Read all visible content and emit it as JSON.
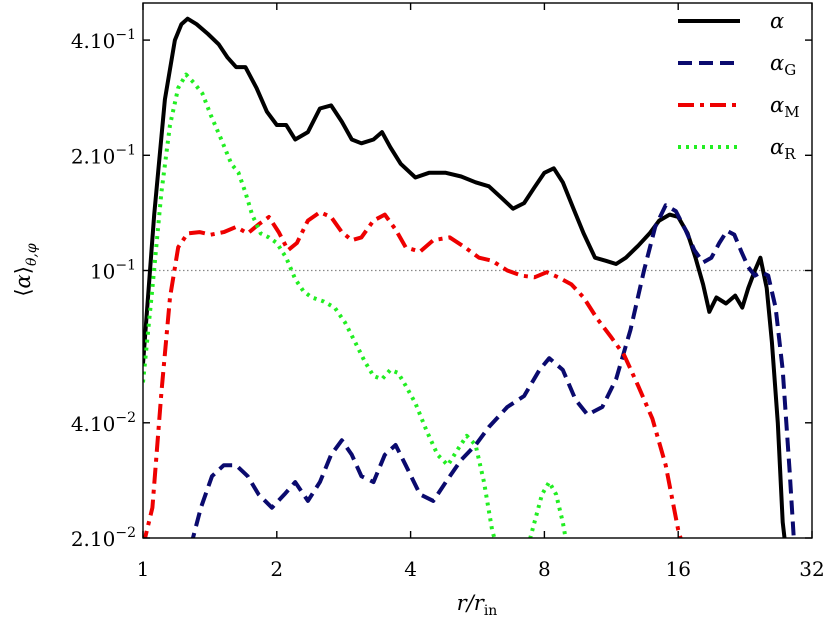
{
  "chart_data": {
    "type": "line",
    "xlabel": "r/r_in",
    "ylabel": "⟨α⟩_θ,φ",
    "xscale": "log2",
    "yscale": "log10",
    "xlim": [
      1,
      32
    ],
    "ylim": [
      0.02,
      0.5
    ],
    "xticks": [
      {
        "value": 1,
        "label": "1"
      },
      {
        "value": 2,
        "label": "2"
      },
      {
        "value": 4,
        "label": "4"
      },
      {
        "value": 8,
        "label": "8"
      },
      {
        "value": 16,
        "label": "16"
      },
      {
        "value": 32,
        "label": "32"
      }
    ],
    "yticks": [
      {
        "value": 0.02,
        "label": "2.10",
        "exp": "−2"
      },
      {
        "value": 0.04,
        "label": "4.10",
        "exp": "−2"
      },
      {
        "value": 0.1,
        "label": "10",
        "exp": "−1"
      },
      {
        "value": 0.2,
        "label": "2.10",
        "exp": "−1"
      },
      {
        "value": 0.4,
        "label": "4.10",
        "exp": "−1"
      }
    ],
    "reference_line": {
      "y": 0.1,
      "style": "dotted",
      "color": "#888888"
    },
    "legend_position": "top-right",
    "series": [
      {
        "name": "α",
        "sub": "",
        "color": "#000000",
        "dash": "",
        "points": [
          [
            1.0,
            0.057
          ],
          [
            1.06,
            0.14
          ],
          [
            1.12,
            0.28
          ],
          [
            1.18,
            0.4
          ],
          [
            1.22,
            0.44
          ],
          [
            1.26,
            0.455
          ],
          [
            1.32,
            0.44
          ],
          [
            1.4,
            0.415
          ],
          [
            1.48,
            0.39
          ],
          [
            1.55,
            0.36
          ],
          [
            1.62,
            0.34
          ],
          [
            1.7,
            0.34
          ],
          [
            1.8,
            0.3
          ],
          [
            1.9,
            0.26
          ],
          [
            2.0,
            0.24
          ],
          [
            2.1,
            0.24
          ],
          [
            2.2,
            0.22
          ],
          [
            2.35,
            0.23
          ],
          [
            2.5,
            0.265
          ],
          [
            2.65,
            0.27
          ],
          [
            2.8,
            0.245
          ],
          [
            2.95,
            0.22
          ],
          [
            3.1,
            0.215
          ],
          [
            3.3,
            0.22
          ],
          [
            3.45,
            0.23
          ],
          [
            3.6,
            0.21
          ],
          [
            3.8,
            0.19
          ],
          [
            4.1,
            0.175
          ],
          [
            4.4,
            0.18
          ],
          [
            4.8,
            0.18
          ],
          [
            5.2,
            0.176
          ],
          [
            5.6,
            0.17
          ],
          [
            6.0,
            0.166
          ],
          [
            6.4,
            0.155
          ],
          [
            6.8,
            0.145
          ],
          [
            7.2,
            0.15
          ],
          [
            7.6,
            0.165
          ],
          [
            8.0,
            0.18
          ],
          [
            8.4,
            0.185
          ],
          [
            8.8,
            0.17
          ],
          [
            9.3,
            0.145
          ],
          [
            9.8,
            0.125
          ],
          [
            10.4,
            0.108
          ],
          [
            11.0,
            0.106
          ],
          [
            11.6,
            0.104
          ],
          [
            12.2,
            0.108
          ],
          [
            13.0,
            0.116
          ],
          [
            13.8,
            0.125
          ],
          [
            14.5,
            0.135
          ],
          [
            15.3,
            0.14
          ],
          [
            16.0,
            0.138
          ],
          [
            16.8,
            0.125
          ],
          [
            17.5,
            0.108
          ],
          [
            18.2,
            0.092
          ],
          [
            18.8,
            0.078
          ],
          [
            19.5,
            0.085
          ],
          [
            20.5,
            0.082
          ],
          [
            21.5,
            0.086
          ],
          [
            22.3,
            0.08
          ],
          [
            23.0,
            0.09
          ],
          [
            23.8,
            0.1
          ],
          [
            24.5,
            0.108
          ],
          [
            25.3,
            0.09
          ],
          [
            26.0,
            0.065
          ],
          [
            26.8,
            0.04
          ],
          [
            27.5,
            0.022
          ],
          [
            27.9,
            0.019
          ]
        ]
      },
      {
        "name": "α",
        "sub": "G",
        "color": "#0a0a6e",
        "dash": "14,7",
        "points": [
          [
            1.28,
            0.019
          ],
          [
            1.35,
            0.024
          ],
          [
            1.43,
            0.029
          ],
          [
            1.52,
            0.031
          ],
          [
            1.62,
            0.031
          ],
          [
            1.72,
            0.029
          ],
          [
            1.82,
            0.026
          ],
          [
            1.95,
            0.024
          ],
          [
            2.08,
            0.026
          ],
          [
            2.2,
            0.028
          ],
          [
            2.35,
            0.025
          ],
          [
            2.5,
            0.028
          ],
          [
            2.65,
            0.033
          ],
          [
            2.8,
            0.036
          ],
          [
            2.95,
            0.033
          ],
          [
            3.1,
            0.029
          ],
          [
            3.3,
            0.028
          ],
          [
            3.5,
            0.033
          ],
          [
            3.7,
            0.035
          ],
          [
            3.9,
            0.031
          ],
          [
            4.2,
            0.026
          ],
          [
            4.5,
            0.025
          ],
          [
            4.8,
            0.028
          ],
          [
            5.2,
            0.032
          ],
          [
            5.6,
            0.035
          ],
          [
            6.0,
            0.039
          ],
          [
            6.6,
            0.044
          ],
          [
            7.2,
            0.047
          ],
          [
            7.8,
            0.055
          ],
          [
            8.2,
            0.059
          ],
          [
            8.8,
            0.055
          ],
          [
            9.4,
            0.046
          ],
          [
            10.0,
            0.042
          ],
          [
            10.8,
            0.044
          ],
          [
            11.6,
            0.052
          ],
          [
            12.5,
            0.07
          ],
          [
            13.4,
            0.1
          ],
          [
            14.2,
            0.13
          ],
          [
            15.0,
            0.148
          ],
          [
            15.8,
            0.143
          ],
          [
            16.6,
            0.128
          ],
          [
            17.4,
            0.113
          ],
          [
            18.2,
            0.105
          ],
          [
            19.0,
            0.108
          ],
          [
            19.8,
            0.118
          ],
          [
            20.6,
            0.127
          ],
          [
            21.4,
            0.124
          ],
          [
            22.2,
            0.112
          ],
          [
            23.0,
            0.102
          ],
          [
            23.8,
            0.097
          ],
          [
            24.6,
            0.099
          ],
          [
            25.5,
            0.097
          ],
          [
            26.5,
            0.08
          ],
          [
            27.5,
            0.055
          ],
          [
            28.5,
            0.03
          ],
          [
            29.2,
            0.019
          ]
        ]
      },
      {
        "name": "α",
        "sub": "M",
        "color": "#ee0000",
        "dash": "16,6,4,6",
        "points": [
          [
            1.0,
            0.019
          ],
          [
            1.05,
            0.024
          ],
          [
            1.1,
            0.048
          ],
          [
            1.15,
            0.085
          ],
          [
            1.2,
            0.115
          ],
          [
            1.26,
            0.125
          ],
          [
            1.34,
            0.126
          ],
          [
            1.42,
            0.124
          ],
          [
            1.52,
            0.126
          ],
          [
            1.62,
            0.13
          ],
          [
            1.72,
            0.125
          ],
          [
            1.82,
            0.132
          ],
          [
            1.92,
            0.138
          ],
          [
            2.02,
            0.126
          ],
          [
            2.12,
            0.113
          ],
          [
            2.22,
            0.118
          ],
          [
            2.35,
            0.135
          ],
          [
            2.5,
            0.142
          ],
          [
            2.65,
            0.138
          ],
          [
            2.8,
            0.126
          ],
          [
            2.95,
            0.12
          ],
          [
            3.1,
            0.122
          ],
          [
            3.3,
            0.135
          ],
          [
            3.5,
            0.14
          ],
          [
            3.7,
            0.128
          ],
          [
            3.9,
            0.115
          ],
          [
            4.2,
            0.112
          ],
          [
            4.5,
            0.12
          ],
          [
            4.9,
            0.122
          ],
          [
            5.3,
            0.115
          ],
          [
            5.7,
            0.108
          ],
          [
            6.1,
            0.106
          ],
          [
            6.6,
            0.1
          ],
          [
            7.1,
            0.097
          ],
          [
            7.6,
            0.096
          ],
          [
            8.1,
            0.099
          ],
          [
            8.6,
            0.096
          ],
          [
            9.2,
            0.092
          ],
          [
            9.8,
            0.085
          ],
          [
            10.5,
            0.075
          ],
          [
            11.3,
            0.067
          ],
          [
            12.1,
            0.06
          ],
          [
            13.0,
            0.05
          ],
          [
            14.0,
            0.041
          ],
          [
            15.0,
            0.031
          ],
          [
            16.0,
            0.021
          ],
          [
            16.4,
            0.019
          ]
        ]
      },
      {
        "name": "α",
        "sub": "R",
        "color": "#22ee22",
        "dash": "3,5",
        "points": [
          [
            1.0,
            0.051
          ],
          [
            1.05,
            0.09
          ],
          [
            1.1,
            0.16
          ],
          [
            1.15,
            0.24
          ],
          [
            1.2,
            0.3
          ],
          [
            1.25,
            0.325
          ],
          [
            1.3,
            0.31
          ],
          [
            1.36,
            0.29
          ],
          [
            1.42,
            0.255
          ],
          [
            1.5,
            0.22
          ],
          [
            1.58,
            0.19
          ],
          [
            1.64,
            0.18
          ],
          [
            1.7,
            0.16
          ],
          [
            1.76,
            0.14
          ],
          [
            1.84,
            0.125
          ],
          [
            1.92,
            0.122
          ],
          [
            2.0,
            0.118
          ],
          [
            2.1,
            0.108
          ],
          [
            2.2,
            0.095
          ],
          [
            2.3,
            0.088
          ],
          [
            2.4,
            0.085
          ],
          [
            2.55,
            0.083
          ],
          [
            2.7,
            0.08
          ],
          [
            2.85,
            0.073
          ],
          [
            3.0,
            0.065
          ],
          [
            3.15,
            0.058
          ],
          [
            3.3,
            0.053
          ],
          [
            3.45,
            0.052
          ],
          [
            3.6,
            0.055
          ],
          [
            3.75,
            0.054
          ],
          [
            3.9,
            0.05
          ],
          [
            4.1,
            0.045
          ],
          [
            4.35,
            0.038
          ],
          [
            4.6,
            0.033
          ],
          [
            4.85,
            0.031
          ],
          [
            5.1,
            0.034
          ],
          [
            5.35,
            0.037
          ],
          [
            5.6,
            0.035
          ],
          [
            5.85,
            0.028
          ],
          [
            6.1,
            0.021
          ],
          [
            6.25,
            0.019
          ]
        ],
        "extra_segments": [
          [
            [
              7.35,
              0.019
            ],
            [
              7.6,
              0.022
            ],
            [
              7.9,
              0.026
            ],
            [
              8.2,
              0.028
            ],
            [
              8.5,
              0.026
            ],
            [
              8.8,
              0.022
            ],
            [
              9.0,
              0.019
            ]
          ]
        ]
      }
    ]
  }
}
